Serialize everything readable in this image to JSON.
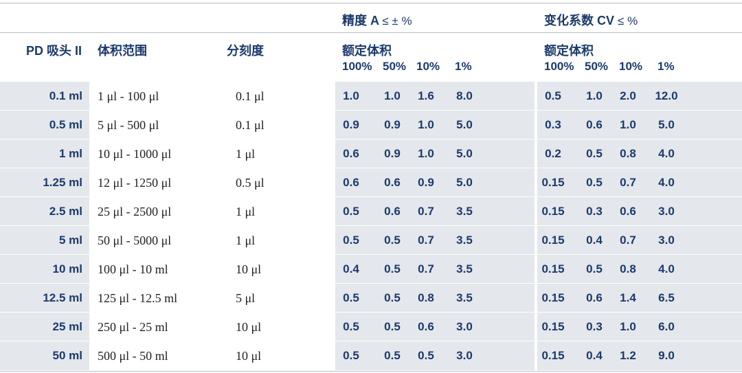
{
  "header": {
    "group_accuracy": "精度 A",
    "group_accuracy_sym": "≤ ± %",
    "group_cv": "变化系数 CV",
    "group_cv_sym": "≤ %",
    "col_pd": "PD 吸头 II",
    "col_range": "体积范围",
    "col_division": "分刻度",
    "rated_volume": "额定体积",
    "pct_labels": [
      "100%",
      "50%",
      "10%",
      "1%"
    ]
  },
  "colors": {
    "text_blue": "#1b3a6b",
    "row_shade": "#e4e7ec"
  },
  "rows": [
    {
      "pd": "0.1 ml",
      "range_from": "1 μl",
      "range_to": "100 μl",
      "division": "0.1 μl",
      "accuracy": [
        "1.0",
        "1.0",
        "1.6",
        "8.0"
      ],
      "cv": [
        "0.5",
        "1.0",
        "2.0",
        "12.0"
      ]
    },
    {
      "pd": "0.5 ml",
      "range_from": "5 μl",
      "range_to": "500 μl",
      "division": "0.1 μl",
      "accuracy": [
        "0.9",
        "0.9",
        "1.0",
        "5.0"
      ],
      "cv": [
        "0.3",
        "0.6",
        "1.0",
        "5.0"
      ]
    },
    {
      "pd": "1 ml",
      "range_from": "10 μl",
      "range_to": "1000 μl",
      "division": "1 μl",
      "accuracy": [
        "0.6",
        "0.9",
        "1.0",
        "5.0"
      ],
      "cv": [
        "0.2",
        "0.5",
        "0.8",
        "4.0"
      ]
    },
    {
      "pd": "1.25 ml",
      "range_from": "12 μl",
      "range_to": "1250 μl",
      "division": "0.5 μl",
      "accuracy": [
        "0.6",
        "0.6",
        "0.9",
        "5.0"
      ],
      "cv": [
        "0.15",
        "0.5",
        "0.7",
        "4.0"
      ]
    },
    {
      "pd": "2.5 ml",
      "range_from": "25 μl",
      "range_to": "2500 μl",
      "division": "1 μl",
      "accuracy": [
        "0.5",
        "0.6",
        "0.7",
        "3.5"
      ],
      "cv": [
        "0.15",
        "0.3",
        "0.6",
        "3.0"
      ]
    },
    {
      "pd": "5 ml",
      "range_from": "50 μl",
      "range_to": "5000 μl",
      "division": "1 μl",
      "accuracy": [
        "0.5",
        "0.5",
        "0.7",
        "3.5"
      ],
      "cv": [
        "0.15",
        "0.4",
        "0.7",
        "3.0"
      ]
    },
    {
      "pd": "10 ml",
      "range_from": "100 μl",
      "range_to": "10 ml",
      "division": "10 μl",
      "accuracy": [
        "0.4",
        "0.5",
        "0.7",
        "3.5"
      ],
      "cv": [
        "0.15",
        "0.5",
        "0.8",
        "4.0"
      ]
    },
    {
      "pd": "12.5 ml",
      "range_from": "125 μl",
      "range_to": "12.5 ml",
      "division": "5 μl",
      "accuracy": [
        "0.5",
        "0.5",
        "0.8",
        "3.5"
      ],
      "cv": [
        "0.15",
        "0.6",
        "1.4",
        "6.5"
      ]
    },
    {
      "pd": "25 ml",
      "range_from": "250 μl",
      "range_to": "25 ml",
      "division": "10 μl",
      "accuracy": [
        "0.5",
        "0.5",
        "0.6",
        "3.0"
      ],
      "cv": [
        "0.15",
        "0.3",
        "1.0",
        "6.0"
      ]
    },
    {
      "pd": "50 ml",
      "range_from": "500 μl",
      "range_to": "50 ml",
      "division": "10 μl",
      "accuracy": [
        "0.5",
        "0.5",
        "0.5",
        "3.0"
      ],
      "cv": [
        "0.15",
        "0.4",
        "1.2",
        "9.0"
      ]
    }
  ]
}
